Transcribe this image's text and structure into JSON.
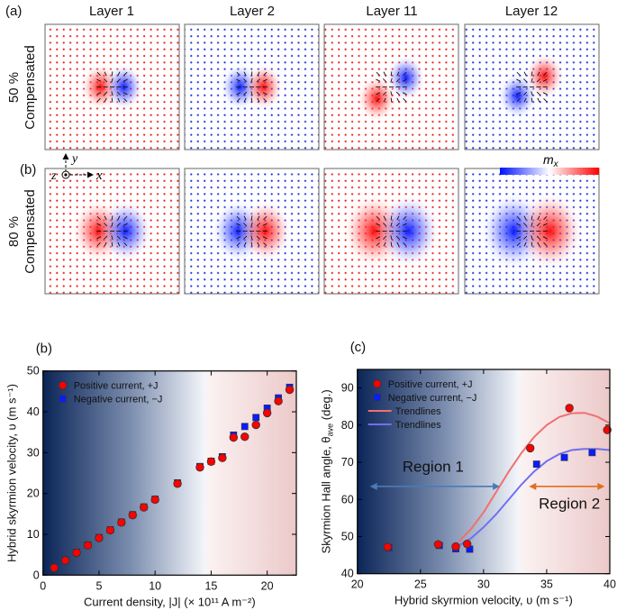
{
  "panel_a": {
    "label": "(a)",
    "layer_titles": [
      "Layer 1",
      "Layer 2",
      "Layer 11",
      "Layer 12"
    ],
    "rows": [
      {
        "label_line1": "50 %",
        "label_line2": "Compensated"
      },
      {
        "label_line1": "80 %",
        "label_line2": "Compensated"
      }
    ],
    "row2_label": "(b)",
    "axes_labels": {
      "y": "y",
      "z": "z",
      "x": "x"
    },
    "colorbar_label": "m",
    "colorbar_sub": "x",
    "colors": {
      "positive": "#ee1c1c",
      "negative": "#1c2cee"
    }
  },
  "chart_data": [
    {
      "type": "scatter",
      "panel_label": "(b)",
      "xlabel": "Current density, |J|  (× 10¹¹ A m⁻²)",
      "ylabel": "Hybrid skyrmion velocity, υ (m s⁻¹)",
      "xlim": [
        0,
        22.6
      ],
      "ylim": [
        0,
        50
      ],
      "xticks": [
        0,
        5,
        10,
        15,
        20
      ],
      "yticks": [
        0,
        10,
        20,
        30,
        40,
        50
      ],
      "legend_position": "top-left",
      "background": "gradient navy → white → pink",
      "series": [
        {
          "name": "Positive current, +J",
          "marker": "circle",
          "color": "#ff0000",
          "x": [
            1,
            2,
            3,
            4,
            5,
            6,
            7,
            8,
            9,
            10,
            12,
            14,
            15,
            16,
            17,
            18,
            19,
            20,
            21,
            22
          ],
          "y": [
            1.8,
            3.6,
            5.5,
            7.3,
            9.1,
            11.0,
            12.9,
            14.7,
            16.6,
            18.5,
            22.4,
            26.4,
            27.8,
            28.7,
            33.7,
            33.9,
            36.8,
            39.7,
            42.6,
            45.4
          ]
        },
        {
          "name": "Negative current, −J",
          "marker": "square",
          "color": "#0a1cff",
          "x": [
            1,
            2,
            3,
            4,
            5,
            6,
            7,
            8,
            9,
            10,
            12,
            14,
            15,
            16,
            17,
            18,
            19,
            20,
            21,
            22
          ],
          "y": [
            1.9,
            3.7,
            5.6,
            7.4,
            9.2,
            11.1,
            13.0,
            14.8,
            16.7,
            18.6,
            22.6,
            26.6,
            27.9,
            29.0,
            34.3,
            36.4,
            38.6,
            40.9,
            43.4,
            46.0
          ]
        }
      ]
    },
    {
      "type": "scatter",
      "panel_label": "(c)",
      "xlabel": "Hybrid skyrmion velocity, υ (m s⁻¹)",
      "ylabel": "Skyrmion Hall angle, θ",
      "ylabel_sub": "ave",
      "ylabel_tail": " (deg.)",
      "xlim": [
        20,
        40
      ],
      "ylim": [
        40,
        95
      ],
      "xticks": [
        20,
        25,
        30,
        35,
        40
      ],
      "yticks": [
        40,
        50,
        60,
        70,
        80,
        90
      ],
      "legend_position": "top-left",
      "series": [
        {
          "name": "Positive current, +J",
          "marker": "circle",
          "color": "#ff0000",
          "x": [
            22.4,
            26.4,
            27.8,
            28.7,
            33.7,
            36.8,
            39.8
          ],
          "y": [
            47.2,
            47.9,
            47.3,
            48.0,
            73.8,
            84.6,
            78.7
          ]
        },
        {
          "name": "Negative current, −J",
          "marker": "square",
          "color": "#0a1cff",
          "x": [
            22.5,
            26.5,
            27.8,
            28.9,
            34.2,
            36.4,
            38.6
          ],
          "y": [
            47.0,
            47.6,
            46.7,
            46.6,
            69.5,
            71.3,
            72.6
          ]
        },
        {
          "name": "Trendlines",
          "marker": "line",
          "color": "#f07070",
          "x": [
            28,
            29,
            30,
            31,
            32,
            33,
            34,
            35,
            36,
            37,
            38,
            39,
            40
          ],
          "y": [
            48.5,
            52,
            56.5,
            62,
            67.5,
            72.5,
            76.8,
            80,
            82.2,
            83.2,
            83.3,
            82.3,
            80.5
          ]
        },
        {
          "name": "Trendlines",
          "marker": "line",
          "color": "#7070f0",
          "x": [
            28,
            29,
            30,
            31,
            32,
            33,
            34,
            35,
            36,
            37,
            38,
            39,
            40
          ],
          "y": [
            47.5,
            49.5,
            52.5,
            56,
            60,
            64,
            67.5,
            70.3,
            72.2,
            73.3,
            73.6,
            73.6,
            73.3
          ]
        }
      ],
      "annotations": [
        {
          "text": "Region 1",
          "arrow_from": 21,
          "arrow_to": 31.3,
          "arrow_y": 63.5,
          "text_x": 26,
          "text_y": 67.5,
          "color": "#4a7ab8"
        },
        {
          "text": "Region 2",
          "arrow_from": 33.6,
          "arrow_to": 39.6,
          "arrow_y": 63.5,
          "text_x": 36.8,
          "text_y": 57.5,
          "color": "#e07020"
        }
      ]
    }
  ]
}
